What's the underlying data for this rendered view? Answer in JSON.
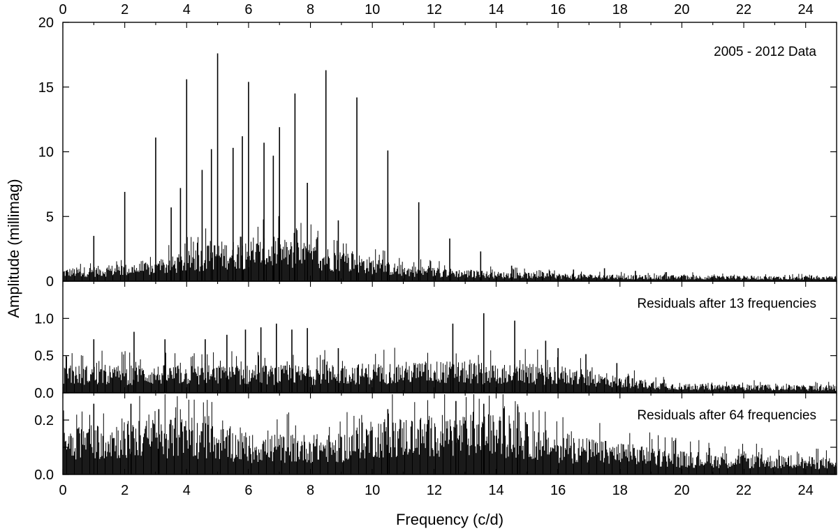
{
  "chart_data": [
    {
      "type": "line",
      "title": "2005 - 2012 Data",
      "xlabel": "Frequency (c/d)",
      "ylabel": "Amplitude (millimag)",
      "xlim": [
        0,
        25
      ],
      "ylim": [
        0,
        20
      ],
      "xticks": [
        0,
        2,
        4,
        6,
        8,
        10,
        12,
        14,
        16,
        18,
        20,
        22,
        24
      ],
      "yticks": [
        0,
        5,
        10,
        15,
        20
      ],
      "ytick_labels": [
        "0",
        "5",
        "10",
        "15",
        "20"
      ],
      "peaks": [
        {
          "x": 1.0,
          "y": 3.5
        },
        {
          "x": 2.0,
          "y": 6.9
        },
        {
          "x": 3.0,
          "y": 11.1
        },
        {
          "x": 3.5,
          "y": 5.7
        },
        {
          "x": 3.8,
          "y": 7.2
        },
        {
          "x": 4.0,
          "y": 15.6
        },
        {
          "x": 4.5,
          "y": 8.6
        },
        {
          "x": 4.8,
          "y": 10.2
        },
        {
          "x": 5.0,
          "y": 17.6
        },
        {
          "x": 5.5,
          "y": 10.3
        },
        {
          "x": 5.8,
          "y": 11.2
        },
        {
          "x": 6.0,
          "y": 15.4
        },
        {
          "x": 6.5,
          "y": 10.7
        },
        {
          "x": 6.8,
          "y": 9.7
        },
        {
          "x": 7.0,
          "y": 11.9
        },
        {
          "x": 7.5,
          "y": 14.5
        },
        {
          "x": 7.9,
          "y": 7.6
        },
        {
          "x": 8.5,
          "y": 16.3
        },
        {
          "x": 8.9,
          "y": 4.7
        },
        {
          "x": 9.5,
          "y": 14.2
        },
        {
          "x": 10.5,
          "y": 10.1
        },
        {
          "x": 11.5,
          "y": 6.1
        },
        {
          "x": 12.5,
          "y": 3.3
        },
        {
          "x": 13.5,
          "y": 2.3
        },
        {
          "x": 14.5,
          "y": 1.2
        },
        {
          "x": 15.5,
          "y": 0.7
        },
        {
          "x": 16.5,
          "y": 0.9
        },
        {
          "x": 17.5,
          "y": 1.0
        },
        {
          "x": 18.5,
          "y": 0.8
        },
        {
          "x": 19.5,
          "y": 0.7
        }
      ],
      "noise_floor": [
        {
          "x": 0,
          "y": 0.8
        },
        {
          "x": 3,
          "y": 1.2
        },
        {
          "x": 5,
          "y": 2.5
        },
        {
          "x": 7,
          "y": 2.7
        },
        {
          "x": 9,
          "y": 2.0
        },
        {
          "x": 11,
          "y": 1.0
        },
        {
          "x": 14,
          "y": 0.6
        },
        {
          "x": 18,
          "y": 0.4
        },
        {
          "x": 25,
          "y": 0.3
        }
      ]
    },
    {
      "type": "line",
      "title": "Residuals after 13 frequencies",
      "xlim": [
        0,
        25
      ],
      "ylim": [
        0,
        1.5
      ],
      "yticks": [
        0.0,
        0.5,
        1.0
      ],
      "ytick_labels": [
        "0.0",
        "0.5",
        "1.0"
      ],
      "peaks": [
        {
          "x": 1.0,
          "y": 0.72
        },
        {
          "x": 2.3,
          "y": 0.82
        },
        {
          "x": 3.3,
          "y": 0.72
        },
        {
          "x": 4.6,
          "y": 0.72
        },
        {
          "x": 5.3,
          "y": 0.78
        },
        {
          "x": 5.9,
          "y": 0.85
        },
        {
          "x": 6.4,
          "y": 0.88
        },
        {
          "x": 6.9,
          "y": 0.93
        },
        {
          "x": 7.4,
          "y": 0.85
        },
        {
          "x": 7.9,
          "y": 0.87
        },
        {
          "x": 8.9,
          "y": 0.6
        },
        {
          "x": 12.6,
          "y": 0.93
        },
        {
          "x": 13.6,
          "y": 1.07
        },
        {
          "x": 14.6,
          "y": 0.97
        },
        {
          "x": 15.6,
          "y": 0.7
        },
        {
          "x": 16.0,
          "y": 0.6
        },
        {
          "x": 16.9,
          "y": 0.52
        },
        {
          "x": 17.9,
          "y": 0.4
        }
      ],
      "noise_floor": [
        {
          "x": 0,
          "y": 0.3
        },
        {
          "x": 8,
          "y": 0.3
        },
        {
          "x": 12,
          "y": 0.35
        },
        {
          "x": 16,
          "y": 0.3
        },
        {
          "x": 18,
          "y": 0.18
        },
        {
          "x": 20,
          "y": 0.1
        },
        {
          "x": 25,
          "y": 0.08
        }
      ]
    },
    {
      "type": "line",
      "title": "Residuals after 64 frequencies",
      "xlim": [
        0,
        25
      ],
      "ylim": [
        0,
        0.3
      ],
      "yticks": [
        0.0,
        0.1,
        0.2
      ],
      "ytick_labels": [
        "0.0",
        "",
        "0.2"
      ],
      "xticks": [
        0,
        2,
        4,
        6,
        8,
        10,
        12,
        14,
        16,
        18,
        20,
        22,
        24
      ],
      "peaks": [
        {
          "x": 1.0,
          "y": 0.26
        },
        {
          "x": 2.2,
          "y": 0.26
        },
        {
          "x": 3.1,
          "y": 0.24
        },
        {
          "x": 10.5,
          "y": 0.24
        },
        {
          "x": 12.7,
          "y": 0.27
        },
        {
          "x": 13.6,
          "y": 0.26
        },
        {
          "x": 14.7,
          "y": 0.25
        }
      ],
      "noise_floor": [
        {
          "x": 0,
          "y": 0.15
        },
        {
          "x": 4,
          "y": 0.17
        },
        {
          "x": 6,
          "y": 0.12
        },
        {
          "x": 9,
          "y": 0.12
        },
        {
          "x": 10,
          "y": 0.17
        },
        {
          "x": 14,
          "y": 0.18
        },
        {
          "x": 16,
          "y": 0.12
        },
        {
          "x": 20,
          "y": 0.07
        },
        {
          "x": 25,
          "y": 0.05
        }
      ]
    }
  ]
}
